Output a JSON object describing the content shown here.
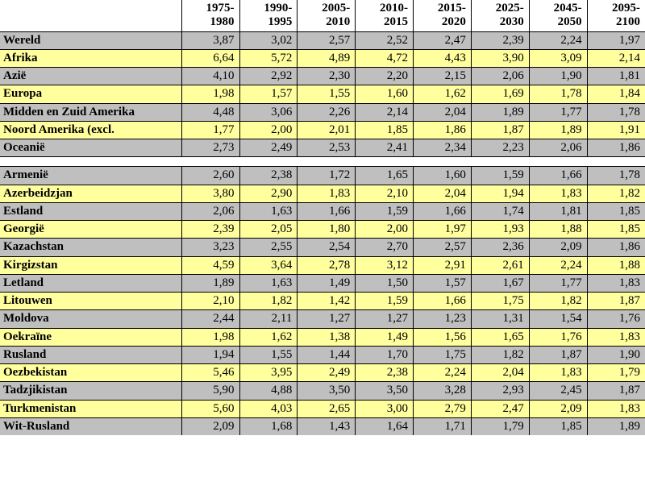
{
  "table": {
    "columns": [
      {
        "l1": "1975-",
        "l2": "1980"
      },
      {
        "l1": "1990-",
        "l2": "1995"
      },
      {
        "l1": "2005-",
        "l2": "2010"
      },
      {
        "l1": "2010-",
        "l2": "2015"
      },
      {
        "l1": "2015-",
        "l2": "2020"
      },
      {
        "l1": "2025-",
        "l2": "2030"
      },
      {
        "l1": "2045-",
        "l2": "2050"
      },
      {
        "l1": "2095-",
        "l2": "2100"
      }
    ],
    "rows": [
      {
        "style": "gray",
        "label": "Wereld",
        "vals": [
          "3,87",
          "3,02",
          "2,57",
          "2,52",
          "2,47",
          "2,39",
          "2,24",
          "1,97"
        ]
      },
      {
        "style": "yellow",
        "label": "Afrika",
        "vals": [
          "6,64",
          "5,72",
          "4,89",
          "4,72",
          "4,43",
          "3,90",
          "3,09",
          "2,14"
        ]
      },
      {
        "style": "gray",
        "label": "Azië",
        "vals": [
          "4,10",
          "2,92",
          "2,30",
          "2,20",
          "2,15",
          "2,06",
          "1,90",
          "1,81"
        ]
      },
      {
        "style": "yellow",
        "label": "Europa",
        "vals": [
          "1,98",
          "1,57",
          "1,55",
          "1,60",
          "1,62",
          "1,69",
          "1,78",
          "1,84"
        ]
      },
      {
        "style": "gray",
        "label": "Midden en Zuid Amerika",
        "vals": [
          "4,48",
          "3,06",
          "2,26",
          "2,14",
          "2,04",
          "1,89",
          "1,77",
          "1,78"
        ]
      },
      {
        "style": "yellow",
        "label": "Noord Amerika (excl.",
        "vals": [
          "1,77",
          "2,00",
          "2,01",
          "1,85",
          "1,86",
          "1,87",
          "1,89",
          "1,91"
        ]
      },
      {
        "style": "gray",
        "label": "Oceanië",
        "vals": [
          "2,73",
          "2,49",
          "2,53",
          "2,41",
          "2,34",
          "2,23",
          "2,06",
          "1,86"
        ]
      },
      {
        "style": "blank"
      },
      {
        "style": "gray",
        "label": "Armenië",
        "vals": [
          "2,60",
          "2,38",
          "1,72",
          "1,65",
          "1,60",
          "1,59",
          "1,66",
          "1,78"
        ]
      },
      {
        "style": "yellow",
        "label": "Azerbeidzjan",
        "vals": [
          "3,80",
          "2,90",
          "1,83",
          "2,10",
          "2,04",
          "1,94",
          "1,83",
          "1,82"
        ]
      },
      {
        "style": "gray",
        "label": "Estland",
        "vals": [
          "2,06",
          "1,63",
          "1,66",
          "1,59",
          "1,66",
          "1,74",
          "1,81",
          "1,85"
        ]
      },
      {
        "style": "yellow",
        "label": "Georgië",
        "vals": [
          "2,39",
          "2,05",
          "1,80",
          "2,00",
          "1,97",
          "1,93",
          "1,88",
          "1,85"
        ]
      },
      {
        "style": "gray",
        "label": "Kazachstan",
        "vals": [
          "3,23",
          "2,55",
          "2,54",
          "2,70",
          "2,57",
          "2,36",
          "2,09",
          "1,86"
        ]
      },
      {
        "style": "yellow",
        "label": "Kirgizstan",
        "vals": [
          "4,59",
          "3,64",
          "2,78",
          "3,12",
          "2,91",
          "2,61",
          "2,24",
          "1,88"
        ]
      },
      {
        "style": "gray",
        "label": "Letland",
        "vals": [
          "1,89",
          "1,63",
          "1,49",
          "1,50",
          "1,57",
          "1,67",
          "1,77",
          "1,83"
        ]
      },
      {
        "style": "yellow",
        "label": "Litouwen",
        "vals": [
          "2,10",
          "1,82",
          "1,42",
          "1,59",
          "1,66",
          "1,75",
          "1,82",
          "1,87"
        ]
      },
      {
        "style": "gray",
        "label": "Moldova",
        "vals": [
          "2,44",
          "2,11",
          "1,27",
          "1,27",
          "1,23",
          "1,31",
          "1,54",
          "1,76"
        ]
      },
      {
        "style": "yellow",
        "label": "Oekraïne",
        "vals": [
          "1,98",
          "1,62",
          "1,38",
          "1,49",
          "1,56",
          "1,65",
          "1,76",
          "1,83"
        ]
      },
      {
        "style": "gray",
        "label": "Rusland",
        "vals": [
          "1,94",
          "1,55",
          "1,44",
          "1,70",
          "1,75",
          "1,82",
          "1,87",
          "1,90"
        ]
      },
      {
        "style": "yellow",
        "label": "Oezbekistan",
        "vals": [
          "5,46",
          "3,95",
          "2,49",
          "2,38",
          "2,24",
          "2,04",
          "1,83",
          "1,79"
        ]
      },
      {
        "style": "gray",
        "label": "Tadzjikistan",
        "vals": [
          "5,90",
          "4,88",
          "3,50",
          "3,50",
          "3,28",
          "2,93",
          "2,45",
          "1,87"
        ]
      },
      {
        "style": "yellow",
        "label": "Turkmenistan",
        "vals": [
          "5,60",
          "4,03",
          "2,65",
          "3,00",
          "2,79",
          "2,47",
          "2,09",
          "1,83"
        ]
      },
      {
        "style": "gray",
        "label": "Wit-Rusland",
        "vals": [
          "2,09",
          "1,68",
          "1,43",
          "1,64",
          "1,71",
          "1,79",
          "1,85",
          "1,89"
        ]
      }
    ]
  }
}
